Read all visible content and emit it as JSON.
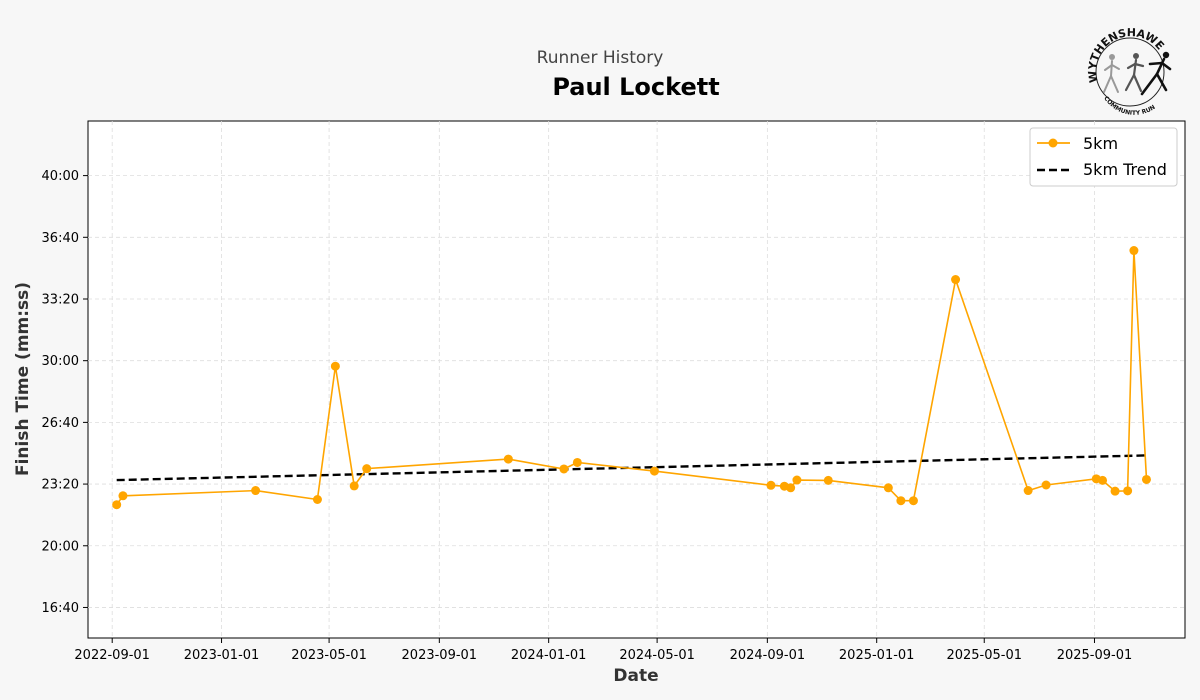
{
  "header": {
    "supertitle": "Runner History",
    "title": "Paul Lockett"
  },
  "logo": {
    "top_text": "WYTHENSHAWE",
    "bottom_text": "COMMUNITY RUN"
  },
  "colors": {
    "series": "#FFA500",
    "trend": "#000000",
    "grid": "#dddddd",
    "background": "#f7f7f7",
    "plot_background": "#ffffff"
  },
  "chart_data": {
    "type": "line",
    "title": "Paul Lockett",
    "xlabel": "Date",
    "ylabel": "Finish Time (mm:ss)",
    "x_ticks": [
      "2022-09-01",
      "2023-01-01",
      "2023-05-01",
      "2023-09-01",
      "2024-01-01",
      "2024-05-01",
      "2024-09-01",
      "2025-01-01",
      "2025-05-01",
      "2025-09-01"
    ],
    "y_ticks": [
      "16:40",
      "20:00",
      "23:20",
      "26:40",
      "30:00",
      "33:20",
      "36:40",
      "40:00"
    ],
    "xlim": [
      "2022-08-05",
      "2025-12-11"
    ],
    "ylim": [
      "15:01",
      "42:57"
    ],
    "grid": true,
    "legend_position": "top-right",
    "series": [
      {
        "name": "5km",
        "style": "line-marker",
        "dates": [
          "2022-09-06",
          "2022-09-13",
          "2023-02-08",
          "2023-04-18",
          "2023-05-08",
          "2023-05-29",
          "2023-06-12",
          "2023-11-17",
          "2024-01-18",
          "2024-02-02",
          "2024-04-28",
          "2024-09-05",
          "2024-09-20",
          "2024-09-27",
          "2024-10-04",
          "2024-11-08",
          "2025-01-14",
          "2025-01-28",
          "2025-02-11",
          "2025-03-30",
          "2025-06-19",
          "2025-07-09",
          "2025-09-03",
          "2025-09-10",
          "2025-09-24",
          "2025-10-08",
          "2025-10-15",
          "2025-10-29"
        ],
        "times": [
          "22:13",
          "22:42",
          "22:59",
          "22:30",
          "29:42",
          "23:14",
          "24:10",
          "24:41",
          "24:09",
          "24:30",
          "24:02",
          "23:16",
          "23:13",
          "23:08",
          "23:33",
          "23:32",
          "23:08",
          "22:26",
          "22:26",
          "34:23",
          "22:59",
          "23:17",
          "23:37",
          "23:32",
          "22:57",
          "22:58",
          "35:57",
          "23:35"
        ]
      },
      {
        "name": "5km Trend",
        "style": "dashed",
        "dates": [
          "2022-09-06",
          "2025-10-29"
        ],
        "times": [
          "23:33",
          "24:53"
        ]
      }
    ]
  }
}
